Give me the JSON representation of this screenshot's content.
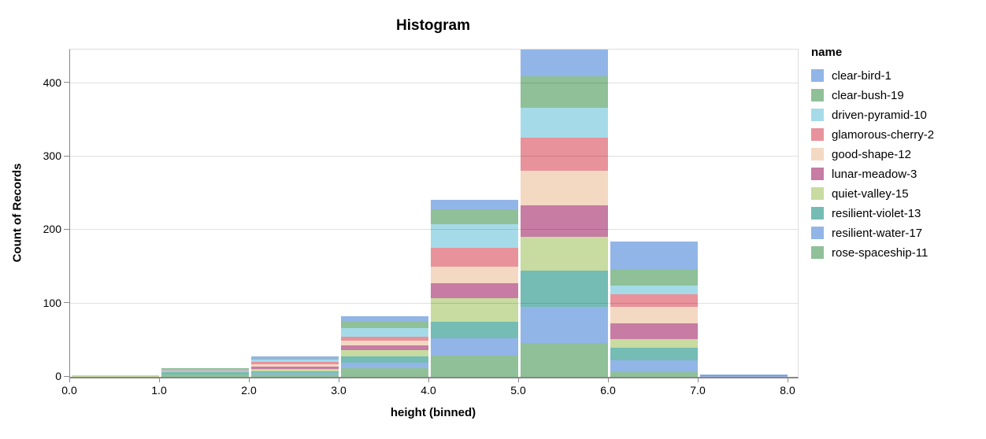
{
  "title": "Histogram",
  "colors": {
    "axis_line": "#888888",
    "grid_line": "#dddddd",
    "view_border": "#dddddd",
    "text": "#000000",
    "background": "#ffffff"
  },
  "chart_data": {
    "type": "bar",
    "stacked": true,
    "title": "Histogram",
    "xlabel": "height (binned)",
    "ylabel": "Count of Records",
    "legend_title": "name",
    "legend_position": "right",
    "grid": true,
    "bin_edges": [
      0,
      1,
      2,
      3,
      4,
      5,
      6,
      7,
      8
    ],
    "x_tick_labels": [
      "0.0",
      "1.0",
      "2.0",
      "3.0",
      "4.0",
      "5.0",
      "6.0",
      "7.0",
      "8.0"
    ],
    "y_ticks": [
      0,
      100,
      200,
      300,
      400
    ],
    "ylim": [
      0,
      446
    ],
    "xlim": [
      0,
      8.1
    ],
    "stack_note": "first series renders at top of stack; tallest bar (bin 5-6, total 449) is clipped at plot top",
    "series": [
      {
        "name": "clear-bird-1",
        "color": "#92b5e7",
        "values": [
          0,
          0,
          3,
          7,
          13,
          39,
          37,
          1
        ]
      },
      {
        "name": "clear-bush-19",
        "color": "#8fc098",
        "values": [
          0,
          2,
          1,
          10,
          20,
          43,
          23,
          0
        ]
      },
      {
        "name": "driven-pyramid-10",
        "color": "#a5dbe8",
        "values": [
          0,
          1,
          4,
          11,
          32,
          41,
          11,
          0
        ]
      },
      {
        "name": "glamorous-cherry-2",
        "color": "#e8929b",
        "values": [
          0,
          2,
          3,
          6,
          26,
          45,
          18,
          0
        ]
      },
      {
        "name": "good-shape-12",
        "color": "#f3d8c2",
        "values": [
          0,
          0,
          3,
          6,
          22,
          47,
          22,
          0
        ]
      },
      {
        "name": "lunar-meadow-3",
        "color": "#c67ca3",
        "values": [
          0,
          0,
          3,
          6,
          21,
          43,
          21,
          1
        ]
      },
      {
        "name": "quiet-valley-15",
        "color": "#c8dba0",
        "values": [
          2,
          1,
          3,
          9,
          32,
          46,
          12,
          0
        ]
      },
      {
        "name": "resilient-violet-13",
        "color": "#74bcb4",
        "values": [
          0,
          3,
          3,
          9,
          22,
          50,
          17,
          0
        ]
      },
      {
        "name": "resilient-water-17",
        "color": "#92b5e7",
        "values": [
          0,
          0,
          2,
          7,
          24,
          49,
          17,
          1
        ]
      },
      {
        "name": "rose-spaceship-11",
        "color": "#8fc098",
        "values": [
          0,
          3,
          3,
          12,
          29,
          46,
          6,
          0
        ]
      }
    ],
    "bin_totals": [
      2,
      12,
      28,
      83,
      241,
      449,
      184,
      3
    ]
  }
}
